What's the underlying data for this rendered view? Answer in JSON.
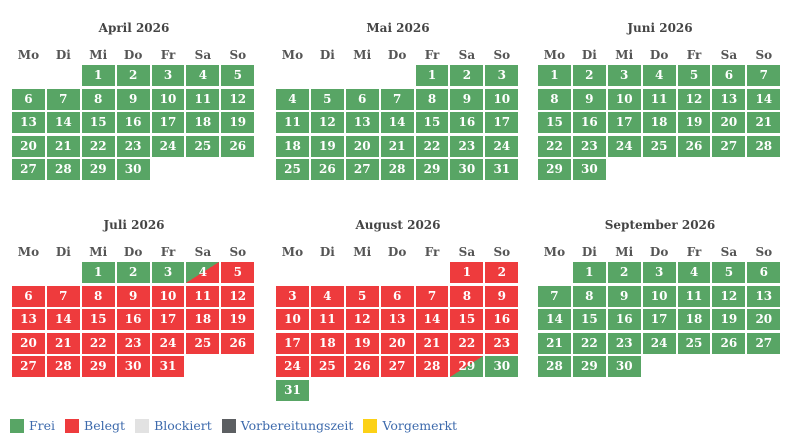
{
  "weekdays": [
    "Mo",
    "Di",
    "Mi",
    "Do",
    "Fr",
    "Sa",
    "So"
  ],
  "months": [
    {
      "title": "April 2026",
      "offset": 2,
      "day_count": 30,
      "status": "ffffffffffffffffffffffffffffff"
    },
    {
      "title": "Mai 2026",
      "offset": 4,
      "day_count": 31,
      "status": "fffffffffffffffffffffffffffffff"
    },
    {
      "title": "Juni 2026",
      "offset": 0,
      "day_count": 30,
      "status": "ffffffffffffffffffffffffffffff"
    },
    {
      "title": "Juli 2026",
      "offset": 2,
      "day_count": 31,
      "status": "fff4bbbbbbbbbbbbbbbbbbbbbbbbbbb"
    },
    {
      "title": "August 2026",
      "offset": 5,
      "day_count": 31,
      "status": "bbbbbbbbbbbbbbbbbbbbbbbbbbbb9ff"
    },
    {
      "title": "September 2026",
      "offset": 1,
      "day_count": 30,
      "status": "ffffffffffffffffffffffffffffff"
    }
  ],
  "status_codes": {
    "f": "Frei",
    "b": "Belegt",
    "4": "Frei/Belegt",
    "9": "Belegt/Frei"
  },
  "legend": [
    {
      "label": "Frei",
      "color": "#58a565"
    },
    {
      "label": "Belegt",
      "color": "#ee3b3d"
    },
    {
      "label": "Blockiert",
      "color": "#e2e2e2"
    },
    {
      "label": "Vorbereitungszeit",
      "color": "#5c5f62"
    },
    {
      "label": "Vorgemerkt",
      "color": "#fcd116"
    }
  ]
}
